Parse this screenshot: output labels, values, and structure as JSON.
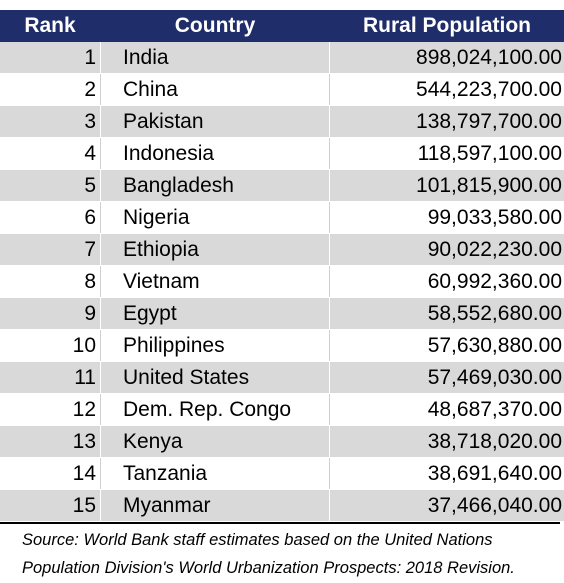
{
  "table": {
    "headers": {
      "rank": "Rank",
      "country": "Country",
      "population": "Rural Population"
    },
    "rows": [
      {
        "rank": "1",
        "country": "India",
        "population": "898,024,100.00"
      },
      {
        "rank": "2",
        "country": "China",
        "population": "544,223,700.00"
      },
      {
        "rank": "3",
        "country": "Pakistan",
        "population": "138,797,700.00"
      },
      {
        "rank": "4",
        "country": "Indonesia",
        "population": "118,597,100.00"
      },
      {
        "rank": "5",
        "country": "Bangladesh",
        "population": "101,815,900.00"
      },
      {
        "rank": "6",
        "country": "Nigeria",
        "population": "99,033,580.00"
      },
      {
        "rank": "7",
        "country": "Ethiopia",
        "population": "90,022,230.00"
      },
      {
        "rank": "8",
        "country": "Vietnam",
        "population": "60,992,360.00"
      },
      {
        "rank": "9",
        "country": "Egypt",
        "population": "58,552,680.00"
      },
      {
        "rank": "10",
        "country": "Philippines",
        "population": "57,630,880.00"
      },
      {
        "rank": "11",
        "country": "United States",
        "population": "57,469,030.00"
      },
      {
        "rank": "12",
        "country": "Dem. Rep. Congo",
        "population": "48,687,370.00"
      },
      {
        "rank": "13",
        "country": "Kenya",
        "population": "38,718,020.00"
      },
      {
        "rank": "14",
        "country": "Tanzania",
        "population": "38,691,640.00"
      },
      {
        "rank": "15",
        "country": "Myanmar",
        "population": "37,466,040.00"
      }
    ]
  },
  "source": {
    "line1": "Source: World Bank staff estimates based on the United Nations",
    "line2": "Population Division's World Urbanization Prospects: 2018 Revision."
  },
  "colors": {
    "header_bg": "#1f2d6b",
    "stripe": "#d9d9d9"
  }
}
